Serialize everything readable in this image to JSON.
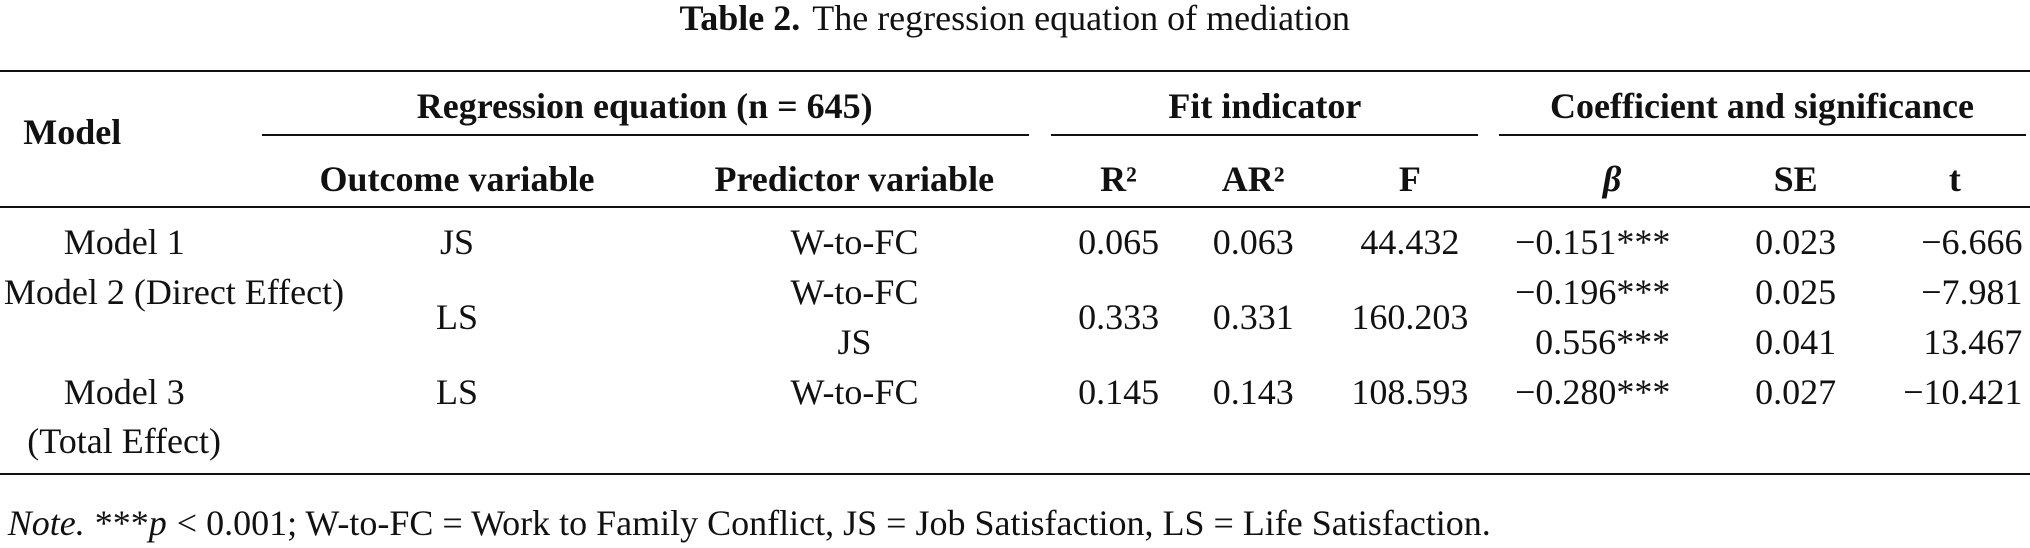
{
  "caption": {
    "label": "Table 2.",
    "text": "The regression equation of mediation"
  },
  "table": {
    "header": {
      "model": "Model",
      "groups": [
        "Regression equation (n = 645)",
        "Fit indicator",
        "Coefficient and significance"
      ],
      "columns": [
        "Outcome variable",
        "Predictor variable",
        "R²",
        "AR²",
        "F",
        "β",
        "SE",
        "t"
      ]
    },
    "rows": [
      {
        "model": [
          "Model 1"
        ],
        "outcome": "JS",
        "predictor": [
          "W-to-FC"
        ],
        "r2": "0.065",
        "ar2": "0.063",
        "f": "44.432",
        "beta": [
          "−0.151***"
        ],
        "se": [
          "0.023"
        ],
        "t": [
          "−6.666"
        ]
      },
      {
        "model": [
          "Model 2 (Direct Effect)"
        ],
        "outcome": "LS",
        "predictor": [
          "W-to-FC",
          "JS"
        ],
        "r2": "0.333",
        "ar2": "0.331",
        "f": "160.203",
        "beta": [
          "−0.196***",
          "0.556***"
        ],
        "se": [
          "0.025",
          "0.041"
        ],
        "t": [
          "−7.981",
          "13.467"
        ]
      },
      {
        "model": [
          "Model 3",
          "(Total Effect)"
        ],
        "outcome": "LS",
        "predictor": [
          "W-to-FC"
        ],
        "r2": "0.145",
        "ar2": "0.143",
        "f": "108.593",
        "beta": [
          "−0.280***"
        ],
        "se": [
          "0.027"
        ],
        "t": [
          "−10.421"
        ]
      }
    ]
  },
  "note": {
    "label": "Note.",
    "stars": "***",
    "p": "p",
    "text": "< 0.001; W-to-FC = Work to Family Conflict, JS = Job Satisfaction, LS = Life Satisfaction."
  }
}
